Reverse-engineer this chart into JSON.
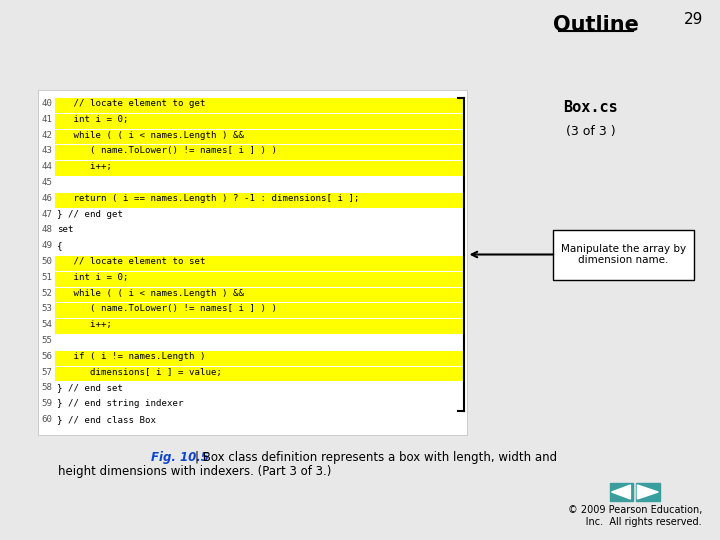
{
  "title": "Outline",
  "page_num": "29",
  "box_cs_label": "Box.cs",
  "subheading": "(3 of 3 )",
  "callout_text": "Manipulate the array by\ndimension name.",
  "fig_label": "Fig. 10.5",
  "copyright": "© 2009 Pearson Education,\n     Inc.  All rights reserved.",
  "bg_color": "#e8e8e8",
  "code_bg": "#ffffff",
  "highlight_color": "#ffff00",
  "code_lines": [
    {
      "num": "40",
      "text": "   // locate element to get",
      "highlight": true
    },
    {
      "num": "41",
      "text": "   int i = 0;",
      "highlight": true
    },
    {
      "num": "42",
      "text": "   while ( ( i < names.Length ) &&",
      "highlight": true
    },
    {
      "num": "43",
      "text": "      ( name.ToLower() != names[ i ] ) )",
      "highlight": true
    },
    {
      "num": "44",
      "text": "      i++;",
      "highlight": true
    },
    {
      "num": "45",
      "text": "",
      "highlight": false
    },
    {
      "num": "46",
      "text": "   return ( i == names.Length ) ? -1 : dimensions[ i ];",
      "highlight": true
    },
    {
      "num": "47",
      "text": "} // end get",
      "highlight": false
    },
    {
      "num": "48",
      "text": "set",
      "highlight": false
    },
    {
      "num": "49",
      "text": "{",
      "highlight": false
    },
    {
      "num": "50",
      "text": "   // locate element to set",
      "highlight": true
    },
    {
      "num": "51",
      "text": "   int i = 0;",
      "highlight": true
    },
    {
      "num": "52",
      "text": "   while ( ( i < names.Length ) &&",
      "highlight": true
    },
    {
      "num": "53",
      "text": "      ( name.ToLower() != names[ i ] ) )",
      "highlight": true
    },
    {
      "num": "54",
      "text": "      i++;",
      "highlight": true
    },
    {
      "num": "55",
      "text": "",
      "highlight": false
    },
    {
      "num": "56",
      "text": "   if ( i != names.Length )",
      "highlight": true
    },
    {
      "num": "57",
      "text": "      dimensions[ i ] = value;",
      "highlight": true
    },
    {
      "num": "58",
      "text": "} // end set",
      "highlight": false
    },
    {
      "num": "59",
      "text": "} // end string indexer",
      "highlight": false
    },
    {
      "num": "60",
      "text": "} // end class Box",
      "highlight": false
    }
  ]
}
